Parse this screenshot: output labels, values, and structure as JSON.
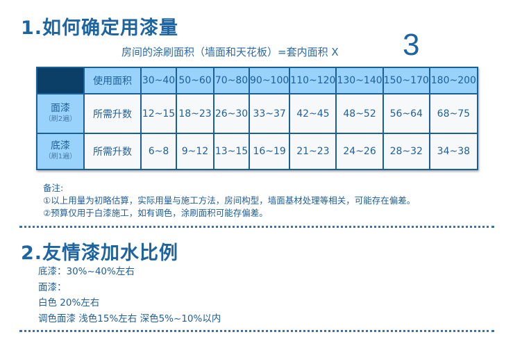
{
  "section1": {
    "title": "1.如何确定用漆量",
    "formula": "房间的涂刷面积（墙面和天花板）=套内面积 X",
    "multiplier": "3",
    "table": {
      "header": [
        "使用面积",
        "30~40",
        "50~60",
        "70~80",
        "90~100",
        "110~120",
        "130~140",
        "150~170",
        "180~200"
      ],
      "rows": [
        {
          "name": "面漆",
          "note": "（刷2遍）",
          "label": "所需升数",
          "values": [
            "12~15",
            "18~23",
            "26~30",
            "33~37",
            "42~45",
            "48~52",
            "56~64",
            "68~75"
          ]
        },
        {
          "name": "底漆",
          "note": "（刷1遍）",
          "label": "所需升数",
          "values": [
            "6~8",
            "9~12",
            "13~15",
            "16~19",
            "21~23",
            "24~26",
            "28~32",
            "34~38"
          ]
        }
      ]
    },
    "notes": {
      "title": "备注:",
      "items": [
        "①以上用量为初略估算，实际用量与施工方法，房间构型，墙面基材处理等相关，可能存在偏差。",
        "②预算仅用于白漆施工，如有调色，涂刷面积可能存偏差。"
      ]
    }
  },
  "section2": {
    "title": "2.友情漆加水比例",
    "lines": [
      "底漆：30%~40%左右",
      "面漆：",
      "白色  20%左右",
      "调色面漆  浅色15%左右  深色5%~10%以内"
    ]
  },
  "colors": {
    "accent": "#1d64a0",
    "header_bg": "#99d3fb",
    "corner_bg": "#0b3f67"
  }
}
